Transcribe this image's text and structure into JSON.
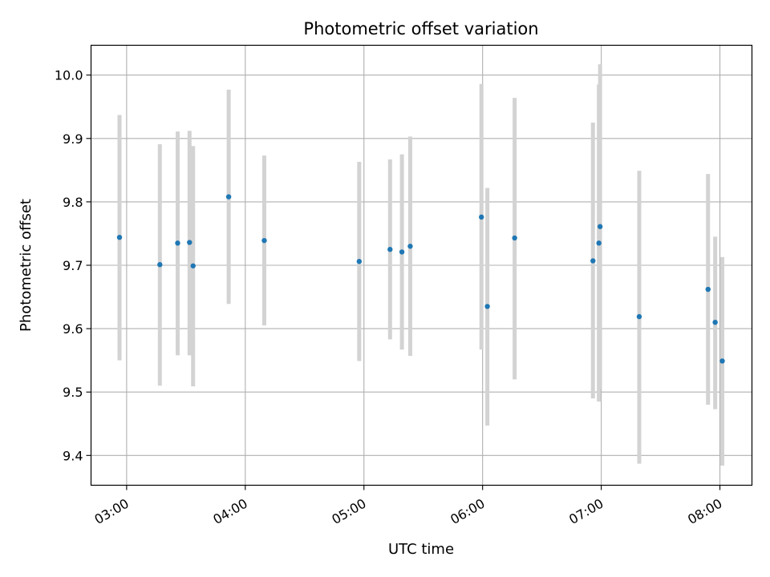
{
  "chart_data": {
    "type": "scatter",
    "title": "Photometric offset variation",
    "xlabel": "UTC time",
    "ylabel": "Photometric offset",
    "x_unit": "hours UTC",
    "xlim": [
      2.7,
      8.27
    ],
    "ylim": [
      9.353,
      10.047
    ],
    "x_ticks": [
      {
        "value": 3,
        "label": "03:00"
      },
      {
        "value": 4,
        "label": "04:00"
      },
      {
        "value": 5,
        "label": "05:00"
      },
      {
        "value": 6,
        "label": "06:00"
      },
      {
        "value": 7,
        "label": "07:00"
      },
      {
        "value": 8,
        "label": "08:00"
      }
    ],
    "y_ticks": [
      {
        "value": 9.4,
        "label": "9.4"
      },
      {
        "value": 9.5,
        "label": "9.5"
      },
      {
        "value": 9.6,
        "label": "9.6"
      },
      {
        "value": 9.7,
        "label": "9.7"
      },
      {
        "value": 9.8,
        "label": "9.8"
      },
      {
        "value": 9.9,
        "label": "9.9"
      },
      {
        "value": 10.0,
        "label": "10.0"
      }
    ],
    "grid": true,
    "colors": {
      "point": "#1f77b4",
      "errorbar": "#d3d3d3",
      "grid": "#b0b0b0",
      "axis": "#000000"
    },
    "points": [
      {
        "x": 2.94,
        "y": 9.744,
        "low": 9.55,
        "high": 9.937
      },
      {
        "x": 3.28,
        "y": 9.701,
        "low": 9.51,
        "high": 9.891
      },
      {
        "x": 3.43,
        "y": 9.735,
        "low": 9.558,
        "high": 9.911
      },
      {
        "x": 3.53,
        "y": 9.736,
        "low": 9.558,
        "high": 9.912
      },
      {
        "x": 3.56,
        "y": 9.699,
        "low": 9.509,
        "high": 9.888
      },
      {
        "x": 3.86,
        "y": 9.808,
        "low": 9.639,
        "high": 9.977
      },
      {
        "x": 4.16,
        "y": 9.739,
        "low": 9.605,
        "high": 9.873
      },
      {
        "x": 4.96,
        "y": 9.706,
        "low": 9.549,
        "high": 9.863
      },
      {
        "x": 5.22,
        "y": 9.725,
        "low": 9.583,
        "high": 9.867
      },
      {
        "x": 5.32,
        "y": 9.721,
        "low": 9.567,
        "high": 9.875
      },
      {
        "x": 5.39,
        "y": 9.73,
        "low": 9.557,
        "high": 9.903
      },
      {
        "x": 5.99,
        "y": 9.776,
        "low": 9.567,
        "high": 9.986
      },
      {
        "x": 6.04,
        "y": 9.635,
        "low": 9.447,
        "high": 9.822
      },
      {
        "x": 6.27,
        "y": 9.743,
        "low": 9.52,
        "high": 9.964
      },
      {
        "x": 6.93,
        "y": 9.707,
        "low": 9.49,
        "high": 9.925
      },
      {
        "x": 6.98,
        "y": 9.735,
        "low": 9.485,
        "high": 9.985
      },
      {
        "x": 6.99,
        "y": 9.761,
        "low": 9.505,
        "high": 10.017
      },
      {
        "x": 7.32,
        "y": 9.619,
        "low": 9.387,
        "high": 9.849
      },
      {
        "x": 7.9,
        "y": 9.662,
        "low": 9.48,
        "high": 9.844
      },
      {
        "x": 7.96,
        "y": 9.61,
        "low": 9.473,
        "high": 9.745
      },
      {
        "x": 8.02,
        "y": 9.549,
        "low": 9.384,
        "high": 9.713
      }
    ]
  }
}
